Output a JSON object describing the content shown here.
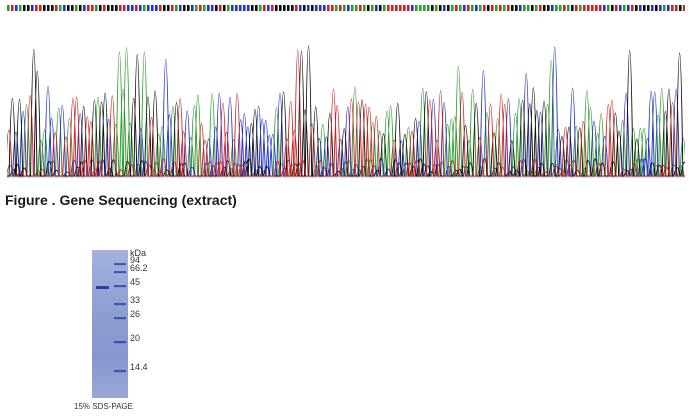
{
  "figure_caption": "Figure . Gene Sequencing (extract)",
  "colors": {
    "A": "#2e9b2e",
    "C": "#2233cc",
    "G": "#111111",
    "T": "#cc2222"
  },
  "gel": {
    "unit_label": "kDa",
    "caption": "15% SDS-PAGE",
    "markers": [
      "94",
      "66.2",
      "45",
      "33",
      "26",
      "20",
      "14.4"
    ]
  }
}
